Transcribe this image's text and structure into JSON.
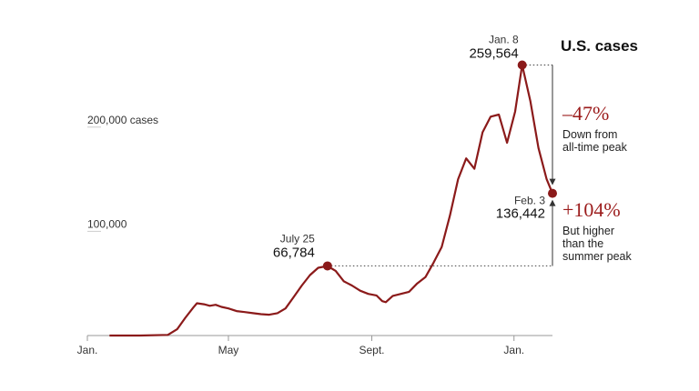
{
  "chart_data": {
    "type": "line",
    "title": "U.S. cases",
    "series": [
      {
        "color": "#8b1a1a",
        "points": [
          [
            "2020-01-20",
            0
          ],
          [
            "2020-02-15",
            0
          ],
          [
            "2020-03-10",
            600
          ],
          [
            "2020-03-18",
            6000
          ],
          [
            "2020-03-25",
            17000
          ],
          [
            "2020-04-01",
            27000
          ],
          [
            "2020-04-04",
            31000
          ],
          [
            "2020-04-10",
            30000
          ],
          [
            "2020-04-15",
            28500
          ],
          [
            "2020-04-20",
            29500
          ],
          [
            "2020-04-25",
            27500
          ],
          [
            "2020-05-01",
            26000
          ],
          [
            "2020-05-08",
            23500
          ],
          [
            "2020-05-15",
            22500
          ],
          [
            "2020-05-22",
            21500
          ],
          [
            "2020-05-29",
            20500
          ],
          [
            "2020-06-05",
            20000
          ],
          [
            "2020-06-12",
            21500
          ],
          [
            "2020-06-19",
            26000
          ],
          [
            "2020-06-26",
            37000
          ],
          [
            "2020-07-03",
            48000
          ],
          [
            "2020-07-10",
            58000
          ],
          [
            "2020-07-17",
            65000
          ],
          [
            "2020-07-25",
            66784
          ],
          [
            "2020-08-01",
            62000
          ],
          [
            "2020-08-08",
            52000
          ],
          [
            "2020-08-15",
            48000
          ],
          [
            "2020-08-22",
            43000
          ],
          [
            "2020-08-29",
            40000
          ],
          [
            "2020-09-05",
            38500
          ],
          [
            "2020-09-10",
            33000
          ],
          [
            "2020-09-13",
            32000
          ],
          [
            "2020-09-19",
            38000
          ],
          [
            "2020-09-26",
            40000
          ],
          [
            "2020-10-03",
            42000
          ],
          [
            "2020-10-10",
            50000
          ],
          [
            "2020-10-17",
            56000
          ],
          [
            "2020-10-24",
            70000
          ],
          [
            "2020-10-31",
            85000
          ],
          [
            "2020-11-07",
            115000
          ],
          [
            "2020-11-14",
            150000
          ],
          [
            "2020-11-21",
            170000
          ],
          [
            "2020-11-28",
            160000
          ],
          [
            "2020-12-05",
            195000
          ],
          [
            "2020-12-12",
            210000
          ],
          [
            "2020-12-19",
            212000
          ],
          [
            "2020-12-26",
            185000
          ],
          [
            "2021-01-02",
            215000
          ],
          [
            "2021-01-08",
            259564
          ],
          [
            "2021-01-15",
            225000
          ],
          [
            "2021-01-22",
            180000
          ],
          [
            "2021-01-29",
            150000
          ],
          [
            "2021-02-03",
            136442
          ]
        ]
      }
    ],
    "xlim": [
      "2020-01-01",
      "2021-02-03"
    ],
    "ylim": [
      0,
      260000
    ],
    "x_ticks": [
      {
        "date": "2020-01-01",
        "label": "Jan."
      },
      {
        "date": "2020-05-01",
        "label": "May"
      },
      {
        "date": "2020-09-01",
        "label": "Sept."
      },
      {
        "date": "2021-01-01",
        "label": "Jan."
      }
    ],
    "y_ticks": [
      {
        "value": 200000,
        "label": "200,000 cases"
      },
      {
        "value": 100000,
        "label": "100,000"
      }
    ],
    "annotations": [
      {
        "date": "2020-07-25",
        "value": 66784,
        "date_label": "July 25",
        "value_label": "66,784"
      },
      {
        "date": "2021-01-08",
        "value": 259564,
        "date_label": "Jan. 8",
        "value_label": "259,564"
      },
      {
        "date": "2021-02-03",
        "value": 136442,
        "date_label": "Feb. 3",
        "value_label": "136,442"
      }
    ],
    "changes": [
      {
        "pct": "–47%",
        "note": [
          "Down from",
          "all-time peak"
        ]
      },
      {
        "pct": "+104%",
        "note": [
          "But higher",
          "than the",
          "summer peak"
        ]
      }
    ],
    "accent_color": "#8b1a1a",
    "pct_color": "#9b1b1b",
    "grid": false
  }
}
